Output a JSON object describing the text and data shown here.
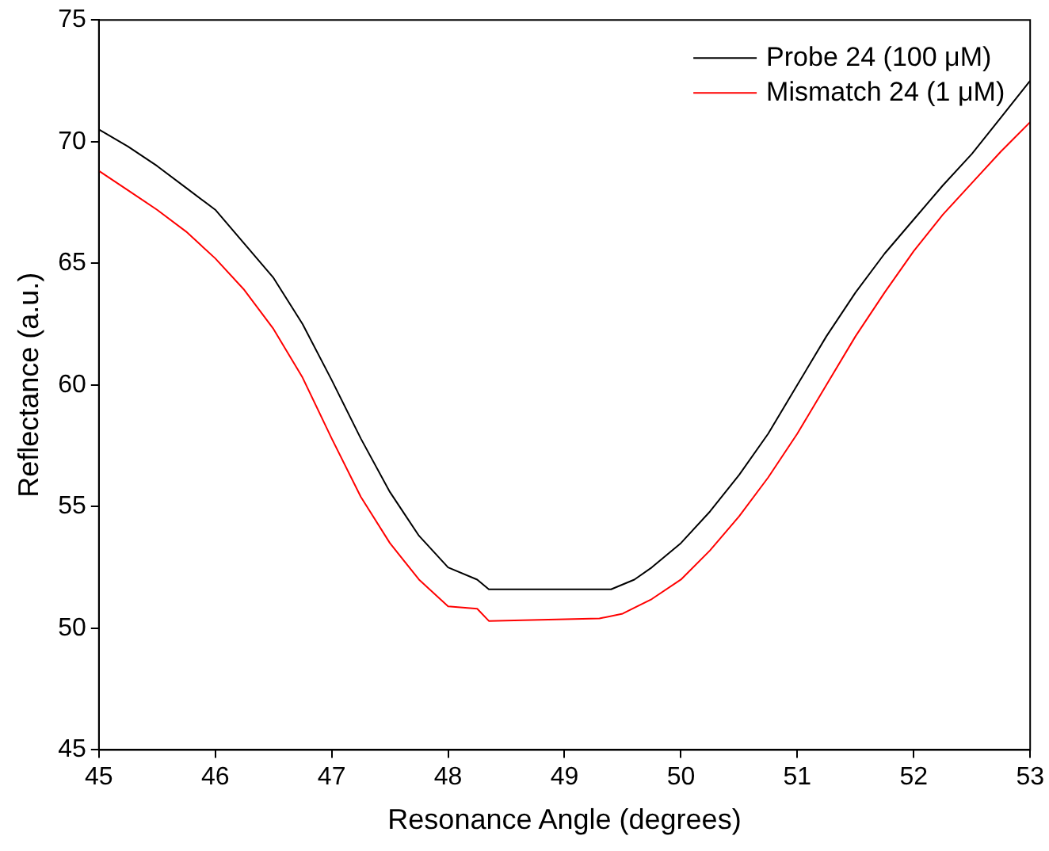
{
  "chart_data": {
    "type": "line",
    "xlabel": "Resonance Angle (degrees)",
    "ylabel": "Reflectance (a.u.)",
    "xlim": [
      45,
      53
    ],
    "xticks": [
      45,
      46,
      47,
      48,
      49,
      50,
      51,
      52,
      53
    ],
    "ylim": [
      45,
      75
    ],
    "yticks": [
      45,
      50,
      55,
      60,
      65,
      70,
      75
    ],
    "grid": false,
    "legend": "top right",
    "marker": "none",
    "line_style": "solid",
    "series": [
      {
        "name": "Probe 24 (100 μM)",
        "color": "#000000",
        "x": [
          45,
          45.25,
          45.5,
          45.75,
          46,
          46.25,
          46.5,
          46.75,
          47,
          47.25,
          47.5,
          47.75,
          48,
          48.25,
          48.35,
          49.4,
          49.6,
          49.75,
          50,
          50.25,
          50.5,
          50.75,
          51,
          51.25,
          51.5,
          51.75,
          52,
          52.25,
          52.5,
          52.75,
          53
        ],
        "values": [
          70.5,
          69.8,
          69.0,
          68.1,
          67.2,
          65.8,
          64.4,
          62.5,
          60.2,
          57.8,
          55.6,
          53.8,
          52.5,
          52.0,
          51.6,
          51.6,
          52.0,
          52.5,
          53.5,
          54.8,
          56.3,
          58.0,
          60.0,
          62.0,
          63.8,
          65.4,
          66.8,
          68.2,
          69.5,
          71.0,
          72.5
        ]
      },
      {
        "name": "Mismatch 24 (1 μM)",
        "color": "#ff0000",
        "x": [
          45,
          45.25,
          45.5,
          45.75,
          46,
          46.25,
          46.5,
          46.75,
          47,
          47.25,
          47.5,
          47.75,
          48,
          48.25,
          48.35,
          49.3,
          49.5,
          49.75,
          50,
          50.25,
          50.5,
          50.75,
          51,
          51.25,
          51.5,
          51.75,
          52,
          52.25,
          52.5,
          52.75,
          53
        ],
        "values": [
          68.8,
          68.0,
          67.2,
          66.3,
          65.2,
          63.9,
          62.3,
          60.3,
          57.8,
          55.4,
          53.5,
          52.0,
          50.9,
          50.8,
          50.3,
          50.4,
          50.6,
          51.2,
          52.0,
          53.2,
          54.6,
          56.2,
          58.0,
          60.0,
          62.0,
          63.8,
          65.5,
          67.0,
          68.3,
          69.6,
          70.8
        ]
      }
    ]
  }
}
